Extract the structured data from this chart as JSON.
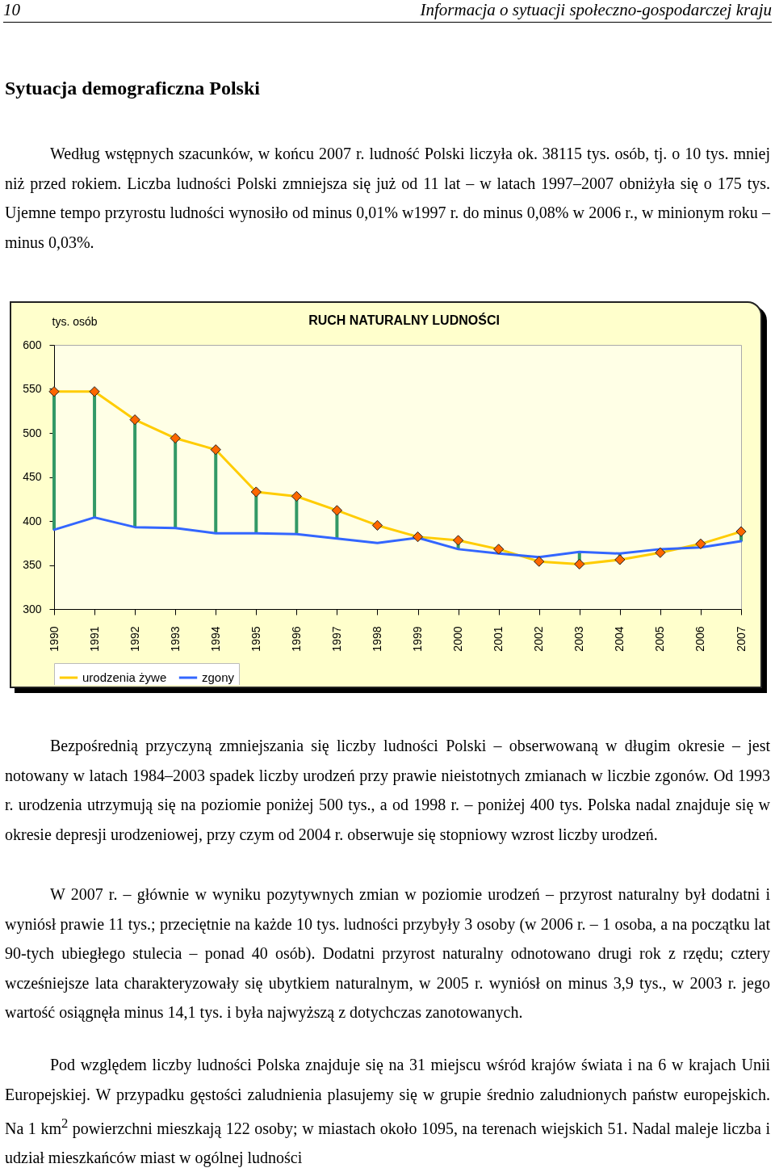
{
  "chart_data": {
    "type": "line",
    "title": "RUCH NATURALNY LUDNOŚCI",
    "ylabel": "tys. osób",
    "categories": [
      "1990",
      "1991",
      "1992",
      "1993",
      "1994",
      "1995",
      "1996",
      "1997",
      "1998",
      "1999",
      "2000",
      "2001",
      "2002",
      "2003",
      "2004",
      "2005",
      "2006",
      "2007"
    ],
    "series": [
      {
        "name": "urodzenia żywe",
        "color": "#ffcc00",
        "values": [
          547,
          547,
          515,
          494,
          481,
          433,
          428,
          412,
          395,
          382,
          378,
          368,
          354,
          351,
          356,
          364,
          374,
          388
        ],
        "errors": [
          [
            390,
            547
          ],
          [
            404,
            547
          ],
          [
            393,
            515
          ],
          [
            392,
            494
          ],
          [
            386,
            481
          ],
          [
            386,
            433
          ],
          [
            385,
            428
          ],
          [
            380,
            412
          ],
          null,
          null,
          [
            368,
            378
          ],
          null,
          null,
          [
            351,
            365
          ],
          [
            356,
            363
          ],
          null,
          null,
          [
            377,
            388
          ]
        ]
      },
      {
        "name": "zgony",
        "color": "#3366ff",
        "marker": "none",
        "values": [
          390,
          404,
          393,
          392,
          386,
          386,
          385,
          380,
          375,
          381,
          368,
          363,
          359,
          365,
          363,
          368,
          370,
          377
        ]
      }
    ],
    "ylim": [
      300,
      600
    ],
    "yticks": [
      300,
      350,
      400,
      450,
      500,
      550,
      600
    ],
    "marker": "diamond",
    "line_style": "solid",
    "legend": "bottom",
    "annotations": [
      "10",
      "Informacja o sytuacji społeczno-gospodarczej kraju",
      "Sytuacja demograficzna Polski",
      "Według wstępnych szacunków, w końcu 2007 r. ludność Polski liczyła ok. 38115 tys. osób, tj. o 10 tys. mniej niż przed rokiem. Liczba ludności Polski zmniejsza się już od 11 lat – w latach 1997–2007 obniżyła się o 175 tys. Ujemne tempo przyrostu ludności wynosiło od minus 0,01% w1997 r. do minus 0,08% w 2006 r., w minionym roku – minus 0,03%.",
      "Bezpośrednią przyczyną zmniejszania się liczby ludności Polski – obserwowaną w długim okresie – jest notowany w latach 1984–2003 spadek liczby urodzeń przy prawie nieistotnych zmianach w liczbie zgonów. Od 1993 r. urodzenia utrzymują się na poziomie poniżej 500 tys., a od 1998 r. – poniżej 400 tys. Polska nadal znajduje się w okresie depresji urodzeniowej, przy czym od 2004 r. obserwuje się stopniowy wzrost liczby urodzeń.",
      "W 2007 r. – głównie w wyniku pozytywnych zmian w poziomie urodzeń – przyrost naturalny był dodatni i wyniósł prawie 11 tys.; przeciętnie na każde 10 tys. ludności przybyły 3 osoby (w 2006 r. – 1 osoba, a na początku lat 90-tych ubiegłego stulecia – ponad 40 osób). Dodatni przyrost naturalny odnotowano drugi rok z rzędu; cztery wcześniejsze lata charakteryzowały się ubytkiem naturalnym, w 2005 r. wyniósł on minus 3,9 tys., w 2003 r. jego wartość osiągnęła minus 14,1 tys. i była najwyższą z dotychczas zanotowanych.",
      "Pod względem liczby ludności Polska znajduje się na 31 miejscu wśród krajów świata i na 6 w krajach Unii Europejskiej. W przypadku gęstości zaludnienia plasujemy się w grupie średnio zaludnionych państw europejskich. Na 1 km$^{2}$ powierzchni mieszkają 122 osoby; w miastach około 1095, na terenach wiejskich 51. Nadal maleje liczba i udział mieszkańców miast w ogólnej ludności"
    ]
  }
}
